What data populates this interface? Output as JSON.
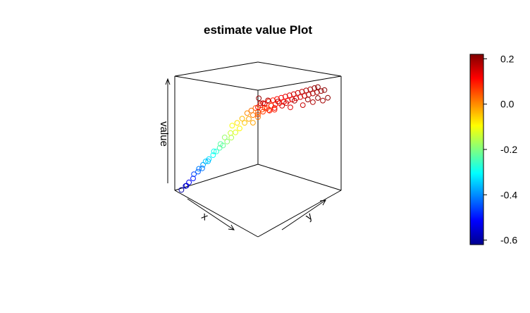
{
  "chart_data": {
    "type": "scatter",
    "projection": "3d",
    "title": "estimate value Plot",
    "xlabel": "x",
    "ylabel": "y",
    "zlabel": "value",
    "grid": false,
    "legend": "right",
    "colorbar": {
      "palette": "jet",
      "ticks": [
        0.2,
        0.0,
        -0.2,
        -0.4,
        -0.6
      ],
      "tick_labels": [
        "0.2",
        "0.0",
        "-0.2",
        "-0.4",
        "-0.6"
      ],
      "range": [
        -0.62,
        0.22
      ],
      "colors": [
        "#00008F",
        "#0000FF",
        "#0080FF",
        "#00FFFF",
        "#80FF80",
        "#FFFF00",
        "#FF8000",
        "#FF0000",
        "#800000"
      ]
    },
    "axis_ranges": {
      "x": [
        0,
        1
      ],
      "y": [
        0,
        1
      ],
      "z": [
        -0.62,
        0.22
      ]
    },
    "points": [
      {
        "x": 0.06,
        "y": 0.02,
        "z": -0.6
      },
      {
        "x": 0.1,
        "y": 0.03,
        "z": -0.56
      },
      {
        "x": 0.08,
        "y": 0.06,
        "z": -0.57
      },
      {
        "x": 0.12,
        "y": 0.05,
        "z": -0.53
      },
      {
        "x": 0.14,
        "y": 0.08,
        "z": -0.5
      },
      {
        "x": 0.16,
        "y": 0.07,
        "z": -0.46
      },
      {
        "x": 0.18,
        "y": 0.1,
        "z": -0.44
      },
      {
        "x": 0.2,
        "y": 0.09,
        "z": -0.41
      },
      {
        "x": 0.22,
        "y": 0.12,
        "z": -0.38
      },
      {
        "x": 0.19,
        "y": 0.14,
        "z": -0.42
      },
      {
        "x": 0.24,
        "y": 0.13,
        "z": -0.35
      },
      {
        "x": 0.26,
        "y": 0.15,
        "z": -0.33
      },
      {
        "x": 0.23,
        "y": 0.17,
        "z": -0.36
      },
      {
        "x": 0.28,
        "y": 0.18,
        "z": -0.3
      },
      {
        "x": 0.3,
        "y": 0.2,
        "z": -0.27
      },
      {
        "x": 0.25,
        "y": 0.22,
        "z": -0.29
      },
      {
        "x": 0.32,
        "y": 0.22,
        "z": -0.24
      },
      {
        "x": 0.34,
        "y": 0.24,
        "z": -0.22
      },
      {
        "x": 0.29,
        "y": 0.26,
        "z": -0.23
      },
      {
        "x": 0.36,
        "y": 0.27,
        "z": -0.19
      },
      {
        "x": 0.31,
        "y": 0.29,
        "z": -0.18
      },
      {
        "x": 0.38,
        "y": 0.3,
        "z": -0.16
      },
      {
        "x": 0.35,
        "y": 0.32,
        "z": -0.14
      },
      {
        "x": 0.4,
        "y": 0.33,
        "z": -0.12
      },
      {
        "x": 0.33,
        "y": 0.36,
        "z": -0.1
      },
      {
        "x": 0.42,
        "y": 0.36,
        "z": -0.09
      },
      {
        "x": 0.37,
        "y": 0.38,
        "z": -0.07
      },
      {
        "x": 0.44,
        "y": 0.4,
        "z": -0.05
      },
      {
        "x": 0.39,
        "y": 0.42,
        "z": -0.04
      },
      {
        "x": 0.46,
        "y": 0.43,
        "z": -0.02
      },
      {
        "x": 0.41,
        "y": 0.46,
        "z": 0.0
      },
      {
        "x": 0.48,
        "y": 0.46,
        "z": 0.01
      },
      {
        "x": 0.43,
        "y": 0.49,
        "z": 0.02
      },
      {
        "x": 0.5,
        "y": 0.5,
        "z": 0.03
      },
      {
        "x": 0.45,
        "y": 0.52,
        "z": 0.04
      },
      {
        "x": 0.52,
        "y": 0.53,
        "z": 0.05
      },
      {
        "x": 0.47,
        "y": 0.56,
        "z": 0.06
      },
      {
        "x": 0.54,
        "y": 0.57,
        "z": 0.06
      },
      {
        "x": 0.49,
        "y": 0.59,
        "z": 0.07
      },
      {
        "x": 0.56,
        "y": 0.6,
        "z": 0.08
      },
      {
        "x": 0.51,
        "y": 0.62,
        "z": 0.09
      },
      {
        "x": 0.58,
        "y": 0.63,
        "z": 0.09
      },
      {
        "x": 0.53,
        "y": 0.65,
        "z": 0.1
      },
      {
        "x": 0.6,
        "y": 0.66,
        "z": 0.1
      },
      {
        "x": 0.55,
        "y": 0.68,
        "z": 0.11
      },
      {
        "x": 0.62,
        "y": 0.69,
        "z": 0.11
      },
      {
        "x": 0.57,
        "y": 0.71,
        "z": 0.12
      },
      {
        "x": 0.64,
        "y": 0.72,
        "z": 0.12
      },
      {
        "x": 0.59,
        "y": 0.74,
        "z": 0.13
      },
      {
        "x": 0.66,
        "y": 0.75,
        "z": 0.13
      },
      {
        "x": 0.61,
        "y": 0.77,
        "z": 0.14
      },
      {
        "x": 0.68,
        "y": 0.78,
        "z": 0.14
      },
      {
        "x": 0.63,
        "y": 0.8,
        "z": 0.15
      },
      {
        "x": 0.7,
        "y": 0.81,
        "z": 0.15
      },
      {
        "x": 0.65,
        "y": 0.83,
        "z": 0.16
      },
      {
        "x": 0.72,
        "y": 0.84,
        "z": 0.16
      },
      {
        "x": 0.67,
        "y": 0.86,
        "z": 0.17
      },
      {
        "x": 0.74,
        "y": 0.87,
        "z": 0.17
      },
      {
        "x": 0.69,
        "y": 0.89,
        "z": 0.18
      },
      {
        "x": 0.76,
        "y": 0.9,
        "z": 0.18
      },
      {
        "x": 0.71,
        "y": 0.92,
        "z": 0.19
      },
      {
        "x": 0.78,
        "y": 0.93,
        "z": 0.19
      },
      {
        "x": 0.73,
        "y": 0.95,
        "z": 0.2
      },
      {
        "x": 0.8,
        "y": 0.96,
        "z": 0.2
      },
      {
        "x": 0.75,
        "y": 0.97,
        "z": 0.21
      },
      {
        "x": 0.82,
        "y": 0.98,
        "z": 0.21
      },
      {
        "x": 0.6,
        "y": 0.4,
        "z": 0.12
      },
      {
        "x": 0.64,
        "y": 0.42,
        "z": 0.16
      },
      {
        "x": 0.68,
        "y": 0.44,
        "z": 0.19
      },
      {
        "x": 0.62,
        "y": 0.46,
        "z": 0.14
      },
      {
        "x": 0.66,
        "y": 0.48,
        "z": 0.1
      },
      {
        "x": 0.7,
        "y": 0.5,
        "z": 0.13
      },
      {
        "x": 0.72,
        "y": 0.52,
        "z": 0.18
      },
      {
        "x": 0.74,
        "y": 0.55,
        "z": 0.15
      },
      {
        "x": 0.58,
        "y": 0.5,
        "z": 0.09
      },
      {
        "x": 0.76,
        "y": 0.58,
        "z": 0.17
      },
      {
        "x": 0.78,
        "y": 0.61,
        "z": 0.14
      },
      {
        "x": 0.8,
        "y": 0.64,
        "z": 0.19
      },
      {
        "x": 0.63,
        "y": 0.38,
        "z": 0.2
      },
      {
        "x": 0.67,
        "y": 0.36,
        "z": 0.18
      },
      {
        "x": 0.84,
        "y": 0.7,
        "z": 0.16
      },
      {
        "x": 0.86,
        "y": 0.74,
        "z": 0.2
      },
      {
        "x": 0.88,
        "y": 0.78,
        "z": 0.18
      },
      {
        "x": 0.9,
        "y": 0.82,
        "z": 0.21
      },
      {
        "x": 0.92,
        "y": 0.86,
        "z": 0.19
      },
      {
        "x": 0.94,
        "y": 0.9,
        "z": 0.21
      },
      {
        "x": 0.55,
        "y": 0.45,
        "z": 0.02
      },
      {
        "x": 0.53,
        "y": 0.41,
        "z": -0.02
      },
      {
        "x": 0.57,
        "y": 0.43,
        "z": 0.05
      },
      {
        "x": 0.59,
        "y": 0.47,
        "z": 0.07
      },
      {
        "x": 0.61,
        "y": 0.52,
        "z": 0.08
      },
      {
        "x": 0.65,
        "y": 0.55,
        "z": 0.09
      }
    ]
  }
}
